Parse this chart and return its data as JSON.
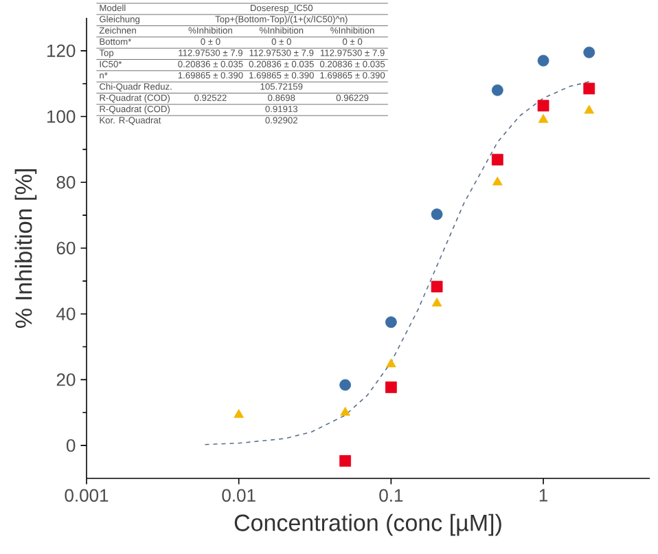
{
  "chart_data": {
    "type": "scatter",
    "xlabel": "Concentration (conc [µM])",
    "ylabel": "% Inhibition [%]",
    "log": "x",
    "xlim": [
      0.001,
      5
    ],
    "xticks": [
      0.001,
      0.01,
      0.1,
      1
    ],
    "ylim": [
      -10,
      130
    ],
    "yticks": [
      0,
      20,
      40,
      60,
      80,
      100,
      120
    ],
    "series": [
      {
        "color": "#3a6ea5",
        "marker": "circle",
        "x": [
          0.05,
          0.1,
          0.2,
          0.5,
          1,
          2
        ],
        "values": [
          18.4,
          37.5,
          70.3,
          108,
          117,
          119.5
        ]
      },
      {
        "color": "#e8001c",
        "marker": "square",
        "x": [
          0.05,
          0.1,
          0.2,
          0.5,
          1,
          2
        ],
        "values": [
          -4.7,
          17.7,
          48.3,
          86.9,
          103.3,
          108.5
        ]
      },
      {
        "color": "#f2b705",
        "marker": "triangle",
        "x": [
          0.01,
          0.05,
          0.1,
          0.2,
          0.5,
          1,
          2
        ],
        "values": [
          9.3,
          10,
          24.7,
          43.2,
          80,
          99,
          101.8
        ]
      },
      {
        "type": "line",
        "color": "#5a6f8a",
        "marker": "none",
        "line_style": "dashed",
        "x": [
          0.006,
          0.01,
          0.02,
          0.03,
          0.05,
          0.07,
          0.1,
          0.15,
          0.2,
          0.3,
          0.5,
          0.7,
          1,
          1.5,
          2
        ],
        "values": [
          0.3,
          0.7,
          2.1,
          4.1,
          9.2,
          15.3,
          25.3,
          41.2,
          54.6,
          73.5,
          92.2,
          100.2,
          105.6,
          109.2,
          110.6
        ]
      }
    ],
    "annotations": [
      "Modell",
      "Doseresp_IC50",
      "Gleichung",
      "Top+(Bottom-Top)/(1+(x/IC50)^n)",
      "Zeichnen",
      "%Inhibition",
      "%Inhibition",
      "%Inhibition",
      "Bottom*",
      "0 ± 0",
      "0 ± 0",
      "0 ± 0",
      "Top",
      "112.97530 ± 7.9",
      "112.97530 ± 7.9",
      "112.97530 ± 7.9",
      "IC50*",
      "0.20836 ± 0.035",
      "0.20836 ± 0.035",
      "0.20836 ± 0.035",
      "n*",
      "1.69865 ± 0.390",
      "1.69865 ± 0.390",
      "1.69865 ± 0.390",
      "Chi-Quadr Reduz.",
      "105.72159",
      "R-Quadrat (COD)",
      "0.92522",
      "0.8698",
      "0.96229",
      "R-Quadrat (COD)",
      "0.91913",
      "Kor. R-Quadrat",
      "0.92902"
    ]
  }
}
